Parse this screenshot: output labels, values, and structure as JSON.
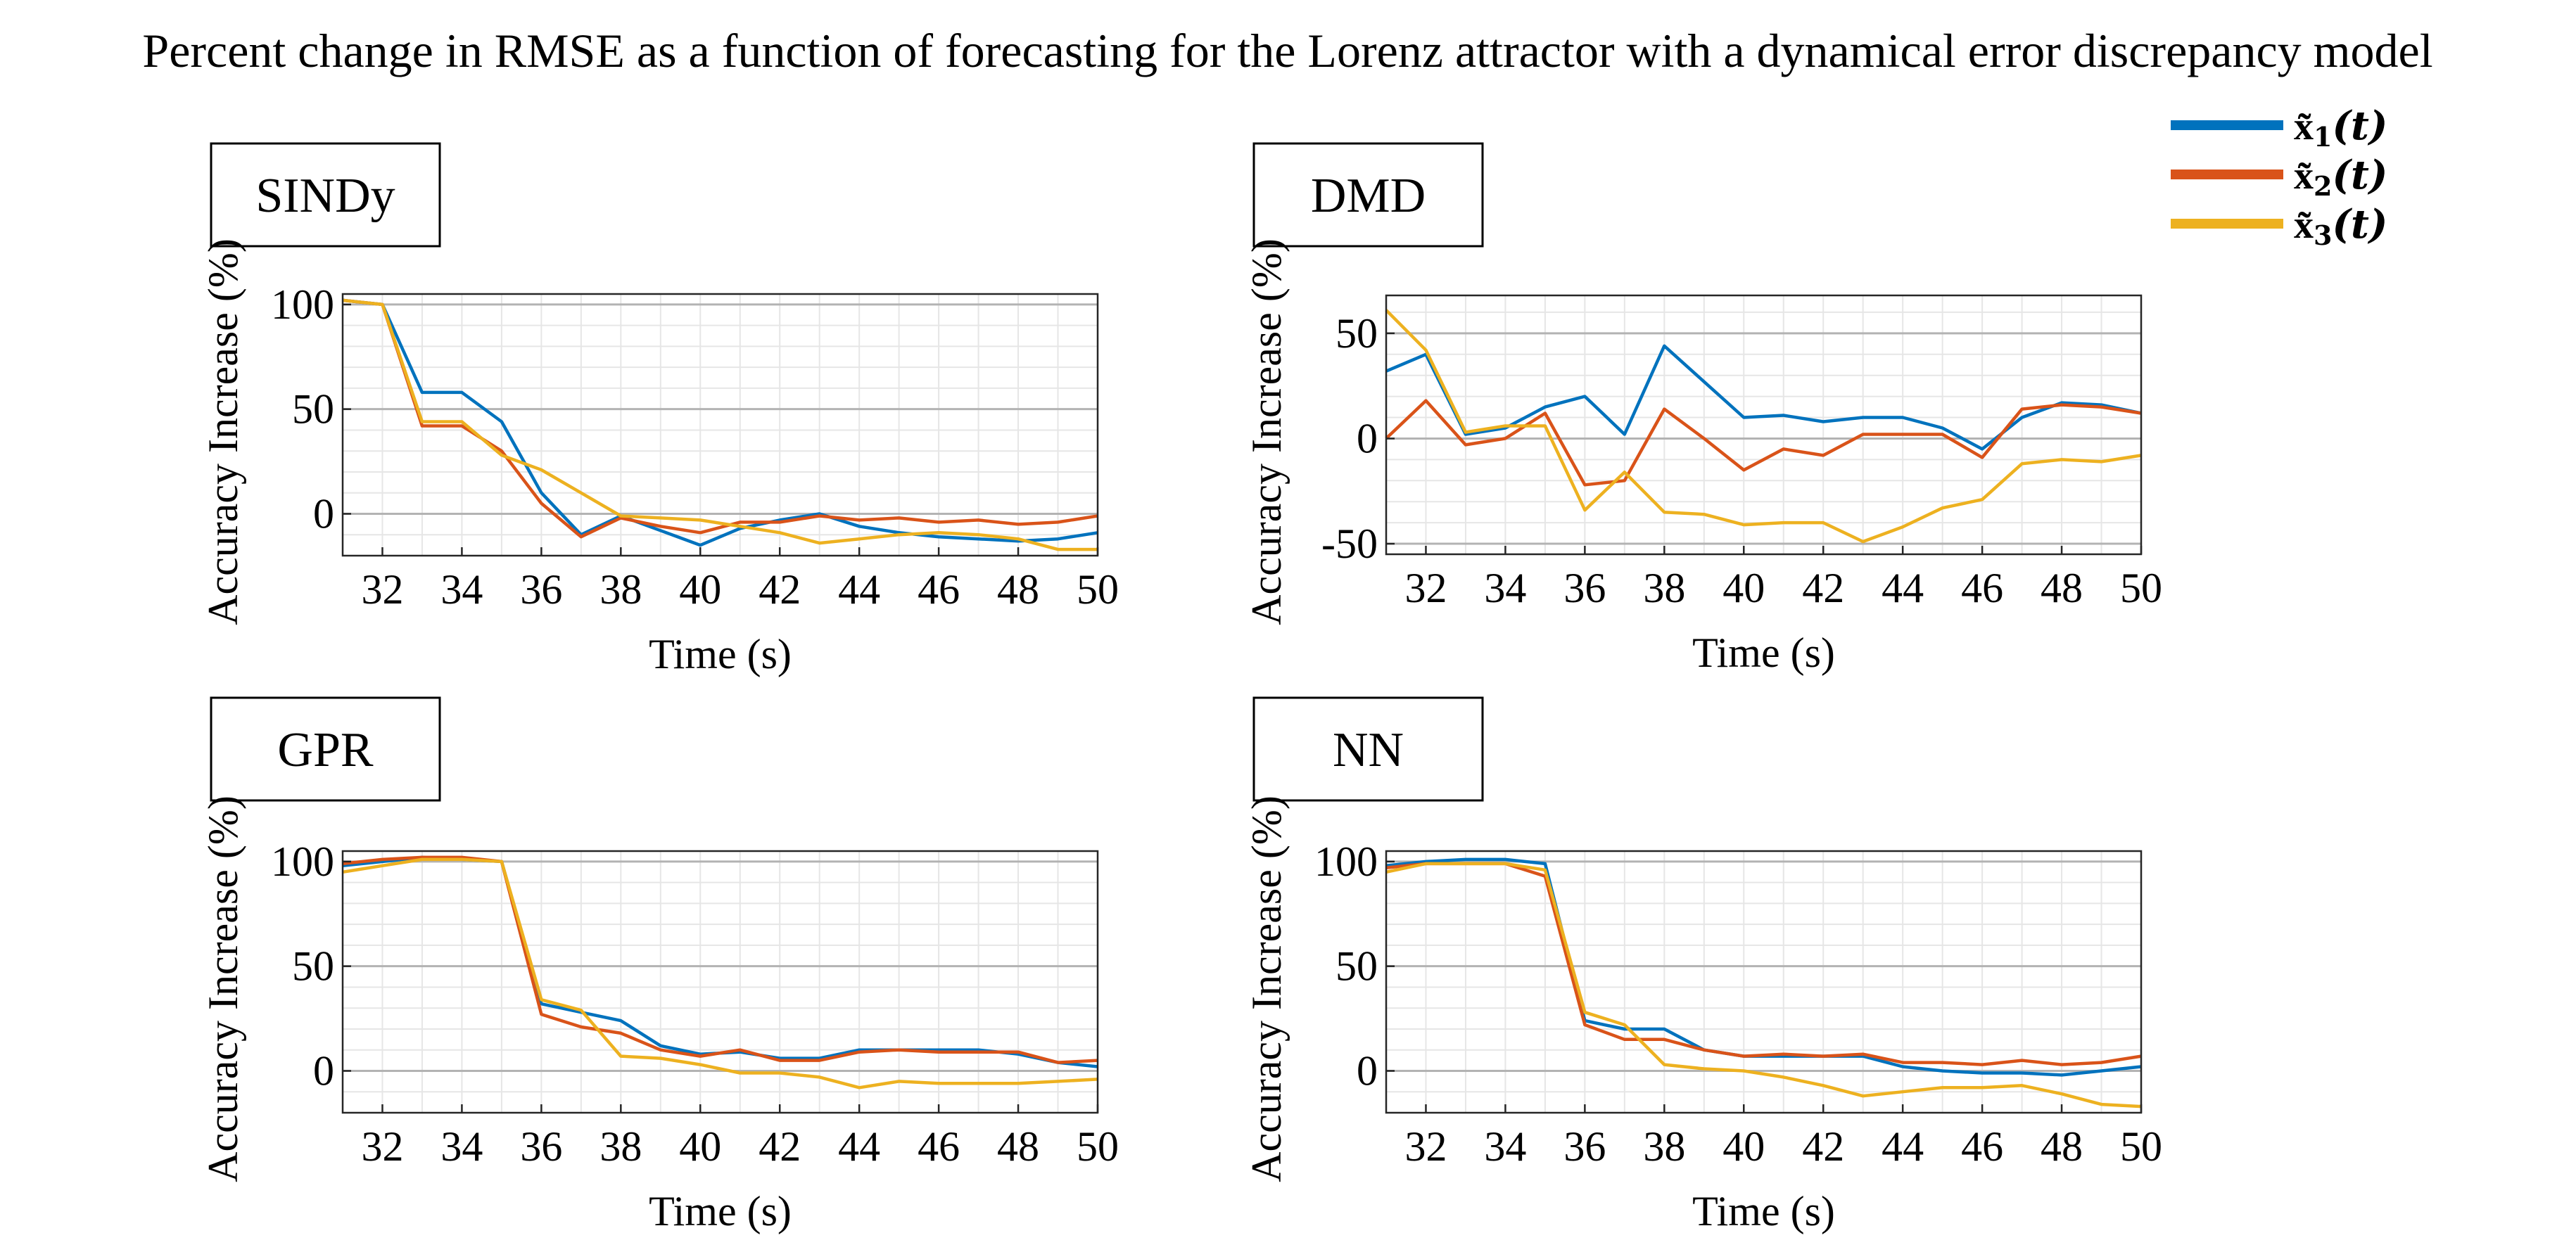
{
  "figure": {
    "title": "Percent change in RMSE as a function of forecasting for the Lorenz attractor with a dynamical error discrepancy model"
  },
  "legend": {
    "position": "top-right",
    "items": [
      {
        "symbol": "x̃",
        "subscript": "1",
        "arg": "(t)",
        "color": "#0072BD"
      },
      {
        "symbol": "x̃",
        "subscript": "2",
        "arg": "(t)",
        "color": "#D95319"
      },
      {
        "symbol": "x̃",
        "subscript": "3",
        "arg": "(t)",
        "color": "#EDB120"
      }
    ]
  },
  "colors": {
    "series1": "#0072BD",
    "series2": "#D95319",
    "series3": "#EDB120",
    "grid": "#e6e6e6",
    "zero": "#b3b3b3"
  },
  "chart_data": [
    {
      "type": "line",
      "title": "SINDy",
      "xlabel": "Time (s)",
      "ylabel": "Accuracy Increase (%)",
      "xlim": [
        31,
        50
      ],
      "ylim": [
        -20,
        105
      ],
      "xticks": [
        32,
        34,
        36,
        38,
        40,
        42,
        44,
        46,
        48,
        50
      ],
      "yticks": [
        0,
        50,
        100
      ],
      "x": [
        31,
        32,
        33,
        34,
        35,
        36,
        37,
        38,
        39,
        40,
        41,
        42,
        43,
        44,
        45,
        46,
        47,
        48,
        49,
        50
      ],
      "series": [
        {
          "name": "x̃1(t)",
          "values": [
            102,
            100,
            58,
            58,
            44,
            10,
            -10,
            -1,
            -8,
            -15,
            -7,
            -3,
            0,
            -6,
            -9,
            -11,
            -12,
            -13,
            -12,
            -9
          ]
        },
        {
          "name": "x̃2(t)",
          "values": [
            102,
            100,
            42,
            42,
            30,
            5,
            -11,
            -2,
            -6,
            -9,
            -4,
            -4,
            -1,
            -3,
            -2,
            -4,
            -3,
            -5,
            -4,
            -1
          ]
        },
        {
          "name": "x̃3(t)",
          "values": [
            102,
            100,
            44,
            44,
            28,
            21,
            10,
            -1,
            -2,
            -3,
            -6,
            -9,
            -14,
            -12,
            -10,
            -9,
            -10,
            -12,
            -17,
            -17
          ]
        }
      ]
    },
    {
      "type": "line",
      "title": "DMD",
      "xlabel": "Time (s)",
      "ylabel": "Accuracy Increase (%)",
      "xlim": [
        31,
        50
      ],
      "ylim": [
        -55,
        68
      ],
      "xticks": [
        32,
        34,
        36,
        38,
        40,
        42,
        44,
        46,
        48,
        50
      ],
      "yticks": [
        -50,
        0,
        50
      ],
      "x": [
        31,
        32,
        33,
        34,
        35,
        36,
        37,
        38,
        39,
        40,
        41,
        42,
        43,
        44,
        45,
        46,
        47,
        48,
        49,
        50
      ],
      "series": [
        {
          "name": "x̃1(t)",
          "values": [
            32,
            40,
            2,
            5,
            15,
            20,
            2,
            44,
            27,
            10,
            11,
            8,
            10,
            10,
            5,
            -5,
            10,
            17,
            16,
            12
          ]
        },
        {
          "name": "x̃2(t)",
          "values": [
            0,
            18,
            -3,
            0,
            12,
            -22,
            -20,
            14,
            0,
            -15,
            -5,
            -8,
            2,
            2,
            2,
            -9,
            14,
            16,
            15,
            12
          ]
        },
        {
          "name": "x̃3(t)",
          "values": [
            61,
            42,
            3,
            6,
            6,
            -34,
            -16,
            -35,
            -36,
            -41,
            -40,
            -40,
            -49,
            -42,
            -33,
            -29,
            -12,
            -10,
            -11,
            -8
          ]
        }
      ]
    },
    {
      "type": "line",
      "title": "GPR",
      "xlabel": "Time (s)",
      "ylabel": "Accuracy Increase (%)",
      "xlim": [
        31,
        50
      ],
      "ylim": [
        -20,
        105
      ],
      "xticks": [
        32,
        34,
        36,
        38,
        40,
        42,
        44,
        46,
        48,
        50
      ],
      "yticks": [
        0,
        50,
        100
      ],
      "x": [
        31,
        32,
        33,
        34,
        35,
        36,
        37,
        38,
        39,
        40,
        41,
        42,
        43,
        44,
        45,
        46,
        47,
        48,
        49,
        50
      ],
      "series": [
        {
          "name": "x̃1(t)",
          "values": [
            98,
            100,
            102,
            101,
            100,
            32,
            28,
            24,
            12,
            8,
            9,
            6,
            6,
            10,
            10,
            10,
            10,
            8,
            4,
            2
          ]
        },
        {
          "name": "x̃2(t)",
          "values": [
            99,
            101,
            102,
            102,
            100,
            27,
            21,
            18,
            10,
            7,
            10,
            5,
            5,
            9,
            10,
            9,
            9,
            9,
            4,
            5
          ]
        },
        {
          "name": "x̃3(t)",
          "values": [
            95,
            98,
            101,
            101,
            100,
            34,
            29,
            7,
            6,
            3,
            -1,
            -1,
            -3,
            -8,
            -5,
            -6,
            -6,
            -6,
            -5,
            -4
          ]
        }
      ]
    },
    {
      "type": "line",
      "title": "NN",
      "xlabel": "Time (s)",
      "ylabel": "Accuracy Increase (%)",
      "xlim": [
        31,
        50
      ],
      "ylim": [
        -20,
        105
      ],
      "xticks": [
        32,
        34,
        36,
        38,
        40,
        42,
        44,
        46,
        48,
        50
      ],
      "yticks": [
        0,
        50,
        100
      ],
      "x": [
        31,
        32,
        33,
        34,
        35,
        36,
        37,
        38,
        39,
        40,
        41,
        42,
        43,
        44,
        45,
        46,
        47,
        48,
        49,
        50
      ],
      "series": [
        {
          "name": "x̃1(t)",
          "values": [
            98,
            100,
            101,
            101,
            99,
            24,
            20,
            20,
            10,
            7,
            7,
            7,
            7,
            2,
            0,
            -1,
            -1,
            -2,
            0,
            2
          ]
        },
        {
          "name": "x̃2(t)",
          "values": [
            97,
            99,
            99,
            99,
            93,
            22,
            15,
            15,
            10,
            7,
            8,
            7,
            8,
            4,
            4,
            3,
            5,
            3,
            4,
            7
          ]
        },
        {
          "name": "x̃3(t)",
          "values": [
            95,
            99,
            99,
            99,
            96,
            28,
            22,
            3,
            1,
            0,
            -3,
            -7,
            -12,
            -10,
            -8,
            -8,
            -7,
            -11,
            -16,
            -17
          ]
        }
      ]
    }
  ]
}
